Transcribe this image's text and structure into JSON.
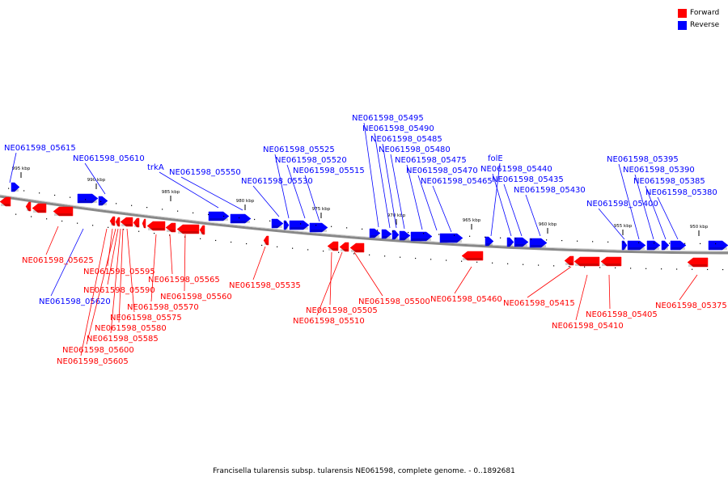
{
  "legend": {
    "forward_label": "Forward",
    "reverse_label": "Reverse",
    "forward_color": "#ff0000",
    "reverse_color": "#0000ff"
  },
  "caption": "Francisella tularensis subsp. tularensis NE061598, complete genome. - 0..1892681",
  "scale_labels": [
    "995 kbp",
    "990 kbp",
    "985 kbp",
    "980 kbp",
    "975 kbp",
    "970 kbp",
    "965 kbp",
    "960 kbp",
    "955 kbp",
    "950 kbp"
  ],
  "reverse_labels": [
    "NE061598_05615",
    "NE061598_05610",
    "trkA",
    "NE061598_05550",
    "NE061598_05530",
    "NE061598_05525",
    "NE061598_05520",
    "NE061598_05515",
    "NE061598_05495",
    "NE061598_05490",
    "NE061598_05485",
    "NE061598_05480",
    "NE061598_05475",
    "NE061598_05470",
    "NE061598_05465",
    "folE",
    "NE061598_05440",
    "NE061598_05435",
    "NE061598_05430",
    "NE061598_05395",
    "NE061598_05390",
    "NE061598_05385",
    "NE061598_05380",
    "NE061598_05400",
    "NE061598_05620"
  ],
  "forward_labels": [
    "NE061598_05625",
    "NE061598_05595",
    "NE061598_05590",
    "NE061598_05575",
    "NE061598_05580",
    "NE061598_05585",
    "NE061598_05600",
    "NE061598_05605",
    "NE061598_05565",
    "NE061598_05560",
    "NE061598_05570",
    "NE061598_05535",
    "NE061598_05505",
    "NE061598_05510",
    "NE061598_05500",
    "NE061598_05460",
    "NE061598_05415",
    "NE061598_05410",
    "NE061598_05405",
    "NE061598_05375"
  ]
}
